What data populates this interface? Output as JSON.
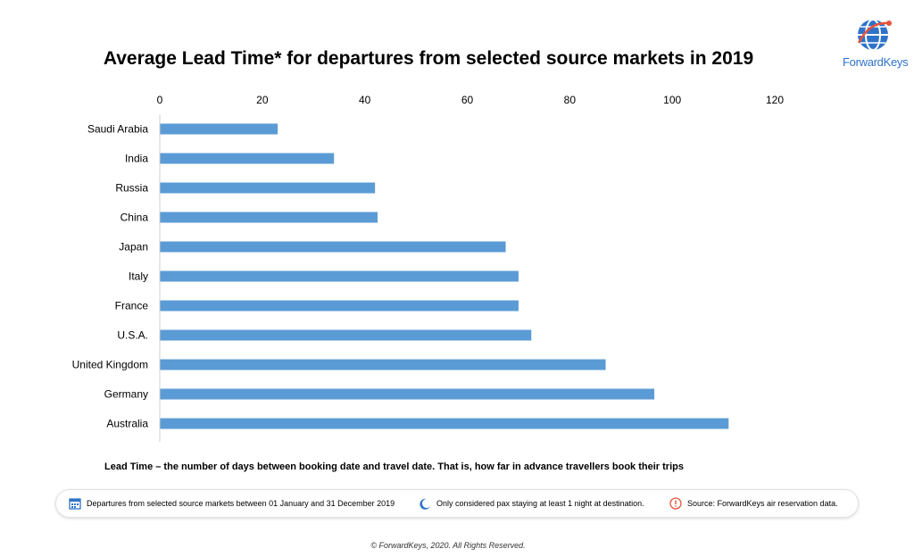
{
  "chart_data": {
    "type": "bar",
    "orientation": "horizontal",
    "title": "Average Lead Time* for departures from selected source markets in 2019",
    "categories": [
      "Saudi Arabia",
      "India",
      "Russia",
      "China",
      "Japan",
      "Italy",
      "France",
      "U.S.A.",
      "United Kingdom",
      "Germany",
      "Australia"
    ],
    "values": [
      23,
      34,
      42,
      42.5,
      67.5,
      70,
      70,
      72.5,
      87,
      96.5,
      111
    ],
    "xlim": [
      0,
      120
    ],
    "xticks": [
      0,
      20,
      40,
      60,
      80,
      100,
      120
    ],
    "x_axis_position": "top",
    "bar_color": "#5b9bd5",
    "grid": false,
    "legend": false
  },
  "logo": {
    "text": "ForwardKeys",
    "color": "#2f73c8",
    "accent": "#e8523a"
  },
  "definition": "Lead Time – the number of days between booking date and travel date. That is, how far in advance travellers book their trips",
  "notes": [
    {
      "icon": "calendar-icon",
      "text": "Departures from selected source markets between 01 January and 31 December 2019"
    },
    {
      "icon": "moon-icon",
      "text": "Only considered pax staying at least 1 night at destination."
    },
    {
      "icon": "alert-icon",
      "text": "Source: ForwardKeys air reservation data."
    }
  ],
  "footer": "© ForwardKeys, 2020. All Rights Reserved."
}
